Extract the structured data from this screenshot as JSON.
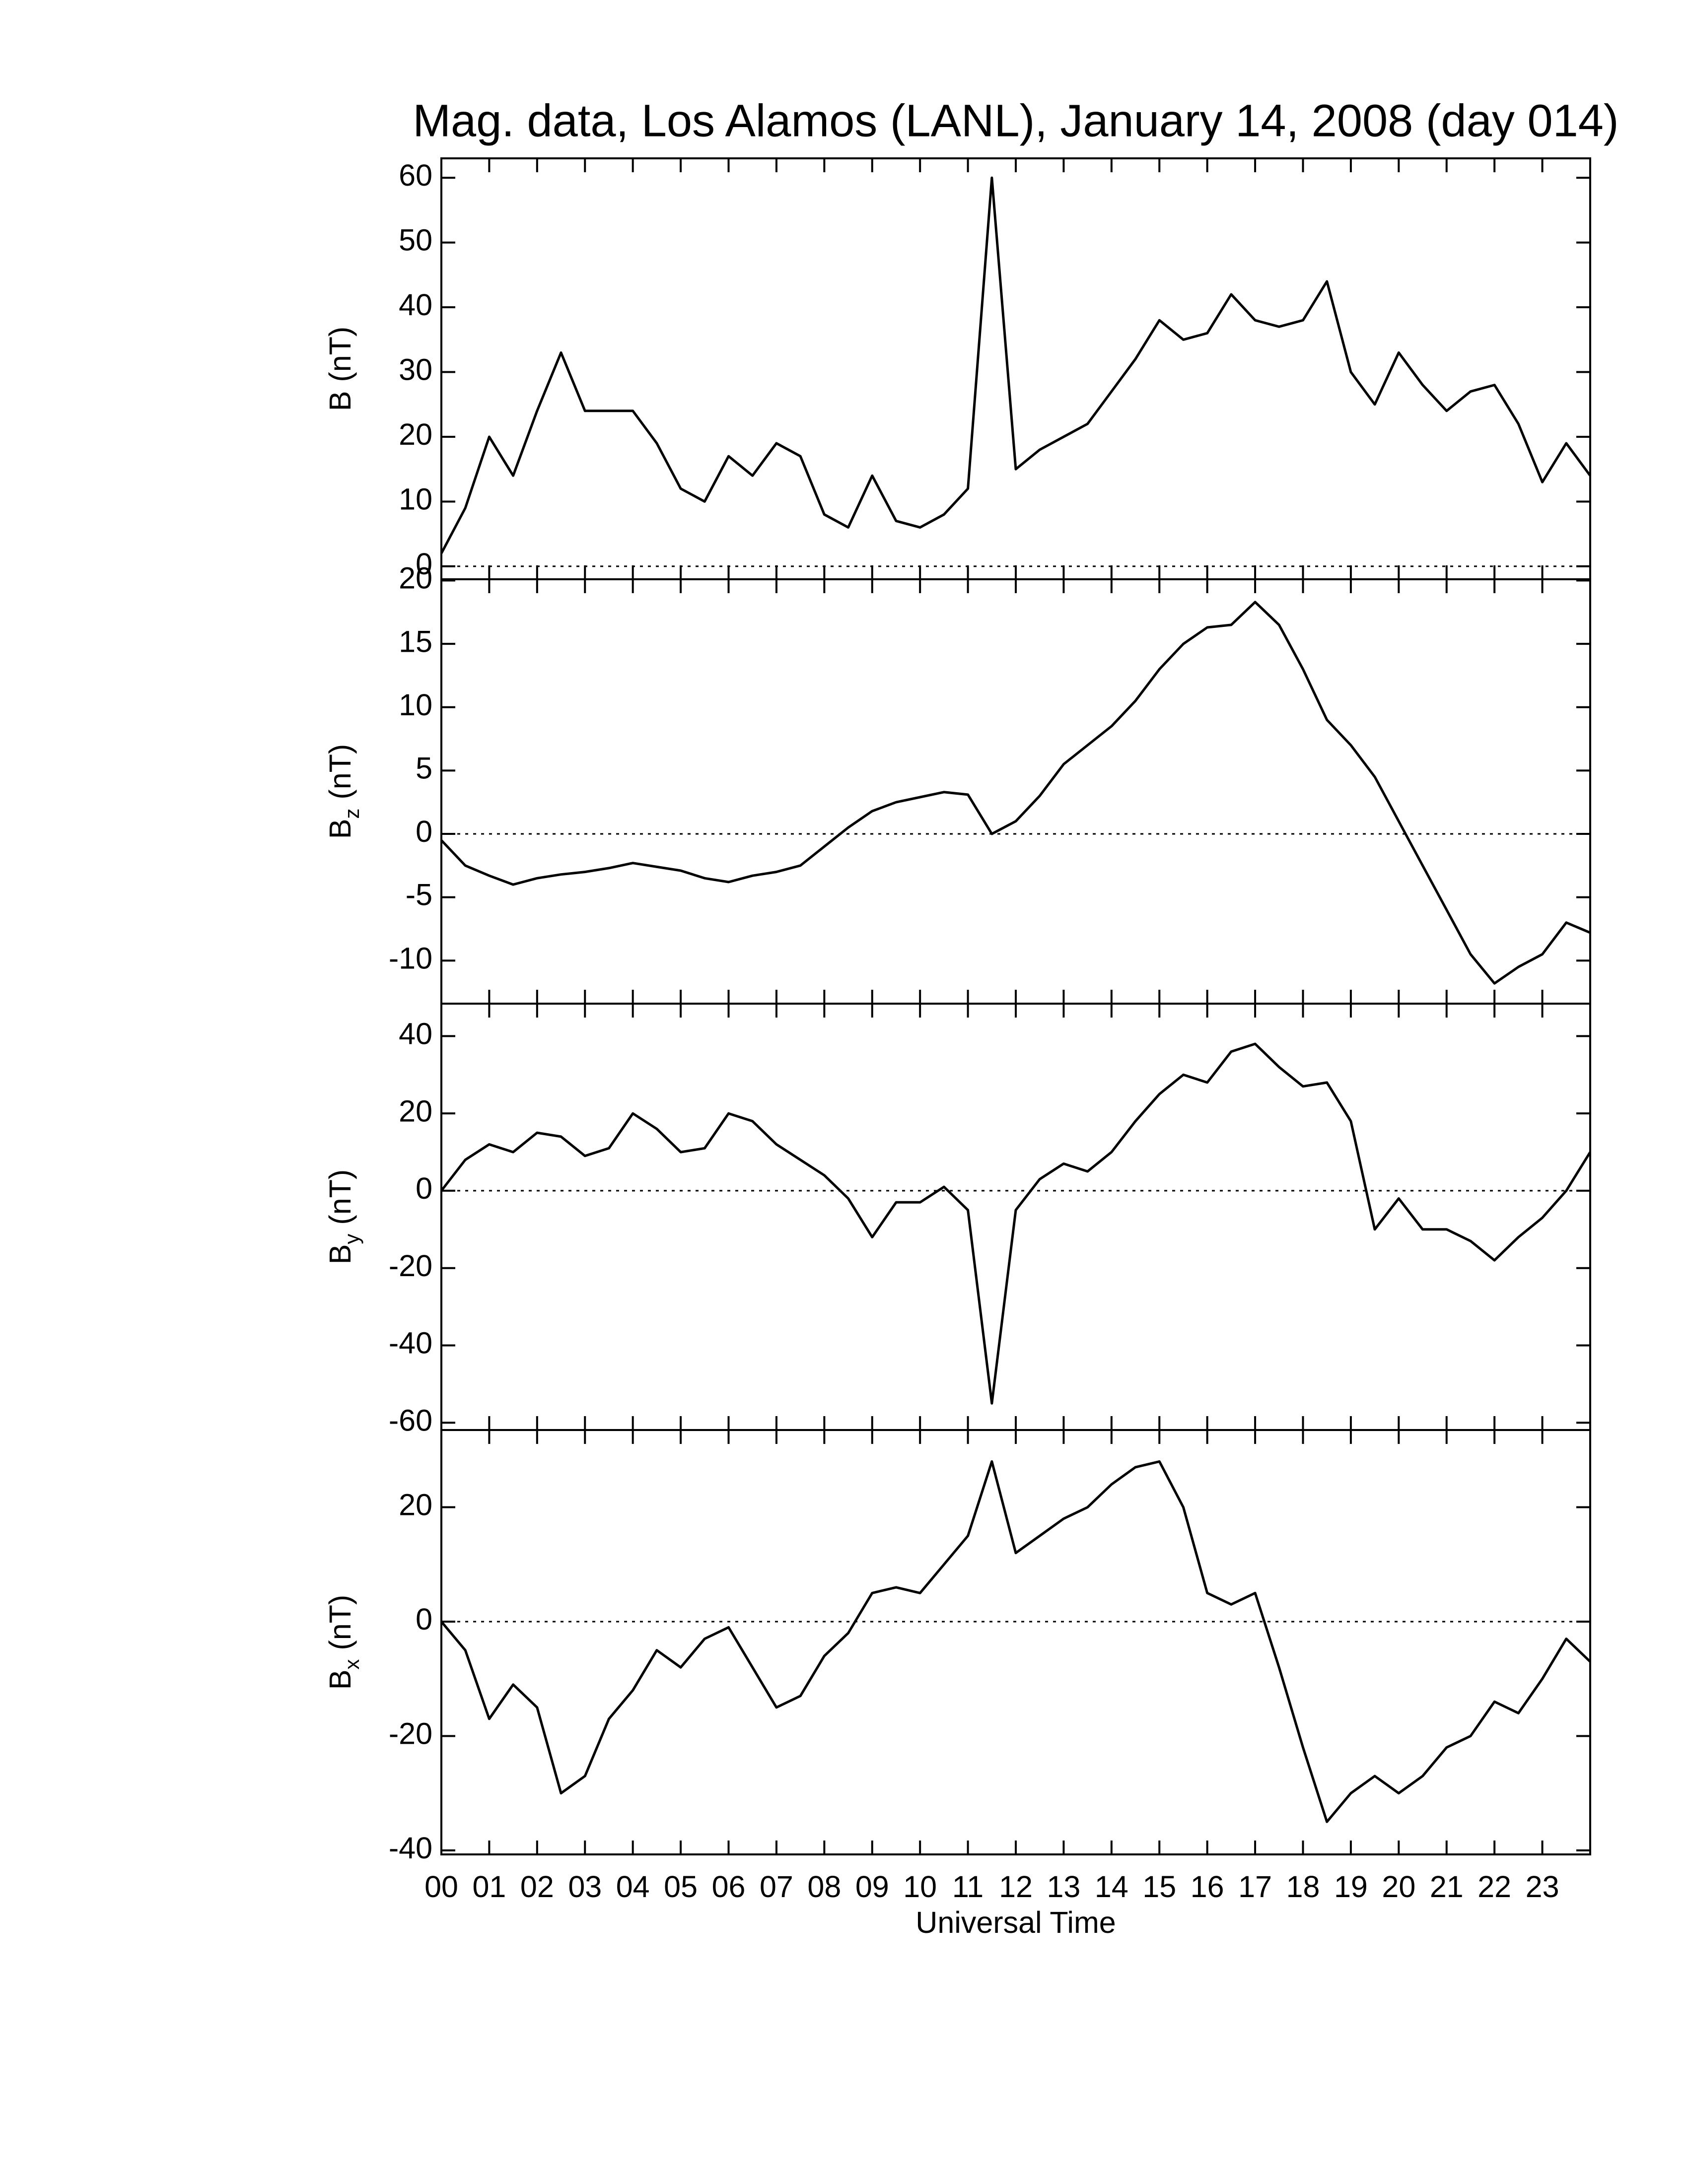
{
  "chart_data": [
    {
      "type": "line",
      "title": "Mag. data, Los Alamos (LANL), January 14, 2008 (day 014)",
      "ylabel": {
        "text": "B",
        "unit": "(nT)"
      },
      "xlim": [
        0,
        24
      ],
      "xticks": [
        0,
        1,
        2,
        3,
        4,
        5,
        6,
        7,
        8,
        9,
        10,
        11,
        12,
        13,
        14,
        15,
        16,
        17,
        18,
        19,
        20,
        21,
        22,
        23
      ],
      "ylim": [
        -2,
        63
      ],
      "yticks": [
        0,
        10,
        20,
        30,
        40,
        50,
        60
      ],
      "zero_line": true,
      "color": "#000000",
      "x": [
        0,
        0.5,
        1,
        1.5,
        2,
        2.5,
        3,
        3.5,
        4,
        4.5,
        5,
        5.5,
        6,
        6.5,
        7,
        7.5,
        8,
        8.5,
        9,
        9.5,
        10,
        10.5,
        11,
        11.5,
        12,
        12.5,
        13,
        13.5,
        14,
        14.5,
        15,
        15.5,
        16,
        16.5,
        17,
        17.5,
        18,
        18.5,
        19,
        19.5,
        20,
        20.5,
        21,
        21.5,
        22,
        22.5,
        23,
        23.5,
        24
      ],
      "values": [
        2,
        9,
        20,
        14,
        24,
        33,
        24,
        24,
        24,
        19,
        12,
        10,
        17,
        14,
        19,
        17,
        8,
        6,
        14,
        7,
        6,
        8,
        12,
        60,
        15,
        18,
        20,
        22,
        27,
        32,
        38,
        35,
        36,
        42,
        38,
        37,
        38,
        44,
        30,
        25,
        33,
        28,
        24,
        27,
        28,
        22,
        13,
        19,
        14
      ]
    },
    {
      "type": "line",
      "ylabel": {
        "text": "B",
        "sub": "z",
        "unit": "(nT)"
      },
      "xlim": [
        0,
        24
      ],
      "xticks": [
        0,
        1,
        2,
        3,
        4,
        5,
        6,
        7,
        8,
        9,
        10,
        11,
        12,
        13,
        14,
        15,
        16,
        17,
        18,
        19,
        20,
        21,
        22,
        23
      ],
      "ylim": [
        -13.4,
        20.1
      ],
      "yticks": [
        -10,
        -5,
        0,
        5,
        10,
        15,
        20
      ],
      "zero_line": true,
      "color": "#000000",
      "x": [
        0,
        0.5,
        1,
        1.5,
        2,
        2.5,
        3,
        3.5,
        4,
        4.5,
        5,
        5.5,
        6,
        6.5,
        7,
        7.5,
        8,
        8.5,
        9,
        9.5,
        10,
        10.5,
        11,
        11.5,
        12,
        12.5,
        13,
        13.5,
        14,
        14.5,
        15,
        15.5,
        16,
        16.5,
        17,
        17.5,
        18,
        18.5,
        19,
        19.5,
        20,
        20.5,
        21,
        21.5,
        22,
        22.5,
        23,
        23.5,
        24
      ],
      "values": [
        -0.5,
        -2.5,
        -3.3,
        -4,
        -3.5,
        -3.2,
        -3,
        -2.7,
        -2.3,
        -2.6,
        -2.9,
        -3.5,
        -3.8,
        -3.3,
        -3,
        -2.5,
        -1,
        0.5,
        1.8,
        2.5,
        2.9,
        3.3,
        3.1,
        0,
        1,
        3,
        5.5,
        7,
        8.5,
        10.5,
        13,
        15,
        16.3,
        16.5,
        18.3,
        16.5,
        13,
        9,
        7,
        4.5,
        1,
        -2.5,
        -6,
        -9.5,
        -11.8,
        -10.5,
        -9.5,
        -7,
        -7.8
      ]
    },
    {
      "type": "line",
      "ylabel": {
        "text": "B",
        "sub": "y",
        "unit": "(nT)"
      },
      "xlim": [
        0,
        24
      ],
      "xticks": [
        0,
        1,
        2,
        3,
        4,
        5,
        6,
        7,
        8,
        9,
        10,
        11,
        12,
        13,
        14,
        15,
        16,
        17,
        18,
        19,
        20,
        21,
        22,
        23
      ],
      "ylim": [
        -61.9,
        48.4
      ],
      "yticks": [
        -60,
        -40,
        -20,
        0,
        20,
        40
      ],
      "zero_line": true,
      "color": "#000000",
      "x": [
        0,
        0.5,
        1,
        1.5,
        2,
        2.5,
        3,
        3.5,
        4,
        4.5,
        5,
        5.5,
        6,
        6.5,
        7,
        7.5,
        8,
        8.5,
        9,
        9.5,
        10,
        10.5,
        11,
        11.5,
        12,
        12.5,
        13,
        13.5,
        14,
        14.5,
        15,
        15.5,
        16,
        16.5,
        17,
        17.5,
        18,
        18.5,
        19,
        19.5,
        20,
        20.5,
        21,
        21.5,
        22,
        22.5,
        23,
        23.5,
        24
      ],
      "values": [
        0,
        8,
        12,
        10,
        15,
        14,
        9,
        11,
        20,
        16,
        10,
        11,
        20,
        18,
        12,
        8,
        4,
        -2,
        -12,
        -3,
        -3,
        1,
        -5,
        -55,
        -5,
        3,
        7,
        5,
        10,
        18,
        25,
        30,
        28,
        36,
        38,
        32,
        27,
        28,
        18,
        -10,
        -2,
        -10,
        -10,
        -13,
        -18,
        -12,
        -7,
        0,
        10
      ]
    },
    {
      "type": "line",
      "ylabel": {
        "text": "B",
        "sub": "x",
        "unit": "(nT)"
      },
      "xlabel": "Universal Time",
      "xlim": [
        0,
        24
      ],
      "xticks": [
        {
          "value": 0,
          "label": "00"
        },
        {
          "value": 1,
          "label": "01"
        },
        {
          "value": 2,
          "label": "02"
        },
        {
          "value": 3,
          "label": "03"
        },
        {
          "value": 4,
          "label": "04"
        },
        {
          "value": 5,
          "label": "05"
        },
        {
          "value": 6,
          "label": "06"
        },
        {
          "value": 7,
          "label": "07"
        },
        {
          "value": 8,
          "label": "08"
        },
        {
          "value": 9,
          "label": "09"
        },
        {
          "value": 10,
          "label": "10"
        },
        {
          "value": 11,
          "label": "11"
        },
        {
          "value": 12,
          "label": "12"
        },
        {
          "value": 13,
          "label": "13"
        },
        {
          "value": 14,
          "label": "14"
        },
        {
          "value": 15,
          "label": "15"
        },
        {
          "value": 16,
          "label": "16"
        },
        {
          "value": 17,
          "label": "17"
        },
        {
          "value": 18,
          "label": "18"
        },
        {
          "value": 19,
          "label": "19"
        },
        {
          "value": 20,
          "label": "20"
        },
        {
          "value": 21,
          "label": "21"
        },
        {
          "value": 22,
          "label": "22"
        },
        {
          "value": 23,
          "label": "23"
        }
      ],
      "ylim": [
        -40.7,
        33.5
      ],
      "yticks": [
        -40,
        -20,
        0,
        20
      ],
      "zero_line": true,
      "color": "#000000",
      "x": [
        0,
        0.5,
        1,
        1.5,
        2,
        2.5,
        3,
        3.5,
        4,
        4.5,
        5,
        5.5,
        6,
        6.5,
        7,
        7.5,
        8,
        8.5,
        9,
        9.5,
        10,
        10.5,
        11,
        11.5,
        12,
        12.5,
        13,
        13.5,
        14,
        14.5,
        15,
        15.5,
        16,
        16.5,
        17,
        17.5,
        18,
        18.5,
        19,
        19.5,
        20,
        20.5,
        21,
        21.5,
        22,
        22.5,
        23,
        23.5,
        24
      ],
      "values": [
        0,
        -5,
        -17,
        -11,
        -15,
        -30,
        -27,
        -17,
        -12,
        -5,
        -8,
        -3,
        -1,
        -8,
        -15,
        -13,
        -6,
        -2,
        5,
        6,
        5,
        10,
        15,
        28,
        12,
        15,
        18,
        20,
        24,
        27,
        28,
        20,
        5,
        3,
        5,
        -8,
        -22,
        -35,
        -30,
        -27,
        -30,
        -27,
        -22,
        -20,
        -14,
        -16,
        -10,
        -3,
        -7
      ]
    }
  ]
}
